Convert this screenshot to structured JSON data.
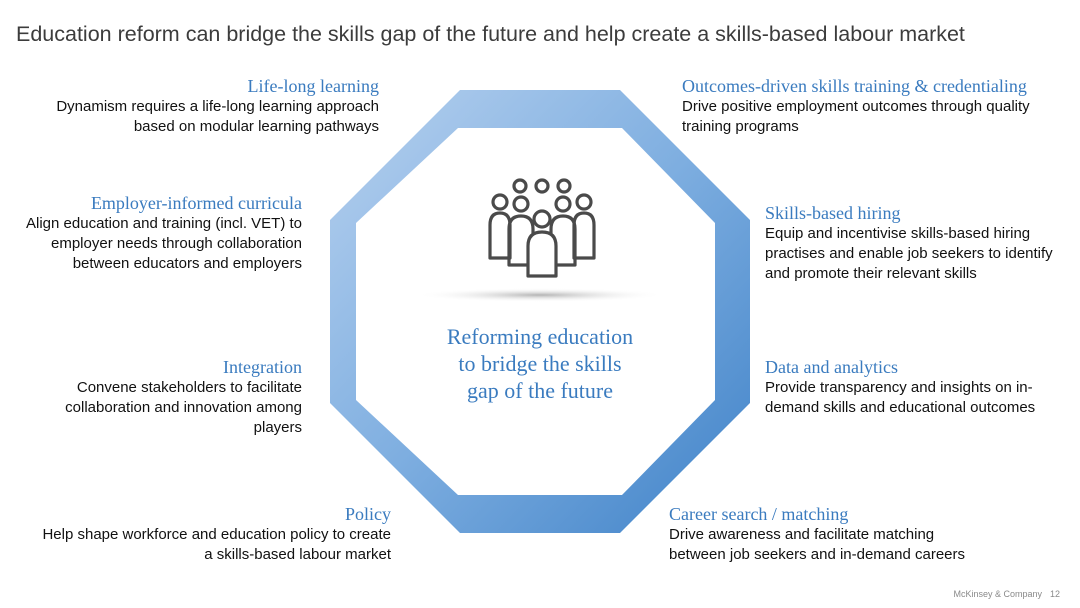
{
  "title": "Education reform can bridge the skills gap of the future and help create a skills-based labour market",
  "center_label": "Reforming education to bridge the skills gap of the future",
  "center_icon": "people-group-icon",
  "colors": {
    "accent": "#3a7bbf",
    "octagon_light": "#a9c7ea",
    "octagon_dark": "#4f8fd0",
    "text": "#111111",
    "icon": "#4a4a4a"
  },
  "blocks": [
    {
      "id": "life-long-learning",
      "heading": "Life-long learning",
      "text": "Dynamism requires a life-long learning approach based on modular learning pathways"
    },
    {
      "id": "outcomes-driven",
      "heading": "Outcomes-driven skills training & credentialing",
      "text": "Drive positive employment outcomes through quality training programs"
    },
    {
      "id": "employer-informed",
      "heading": "Employer-informed curricula",
      "text": "Align education and training (incl. VET) to employer needs through collaboration between educators and employers"
    },
    {
      "id": "skills-based-hiring",
      "heading": "Skills-based hiring",
      "text": "Equip and incentivise skills-based hiring practises and enable job seekers to identify and promote their relevant skills"
    },
    {
      "id": "integration",
      "heading": "Integration",
      "text": "Convene stakeholders to facilitate collaboration and innovation among players"
    },
    {
      "id": "data-analytics",
      "heading": "Data and analytics",
      "text": "Provide transparency and insights on in-demand skills and educational outcomes"
    },
    {
      "id": "policy",
      "heading": "Policy",
      "text": "Help shape workforce and education policy to create a skills-based labour market"
    },
    {
      "id": "career-search",
      "heading": "Career search / matching",
      "text": "Drive awareness and facilitate matching between job seekers and in-demand careers"
    }
  ],
  "footer": {
    "source": "McKinsey & Company",
    "page": "12"
  }
}
